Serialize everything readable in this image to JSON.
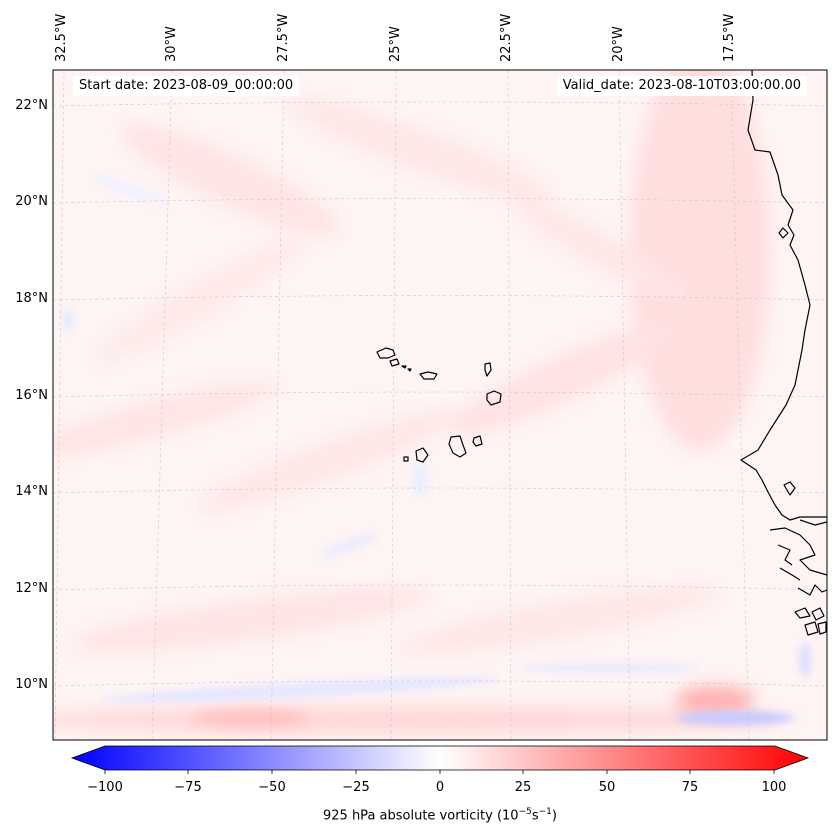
{
  "map": {
    "start_date_label": "Start date: 2023-08-09_00:00:00",
    "valid_date_label": "Valid_date: 2023-08-10T03:00:00.00",
    "longitude_labels": [
      "32.5°W",
      "30°W",
      "27.5°W",
      "25°W",
      "22.5°W",
      "20°W",
      "17.5°W"
    ],
    "latitude_labels": [
      "22°N",
      "20°N",
      "18°N",
      "16°N",
      "14°N",
      "12°N",
      "10°N"
    ],
    "field_colors": {
      "negative": "#0000ff",
      "neutral": "#ffffff",
      "positive": "#ff0000",
      "coastline": "#000000"
    }
  },
  "colorbar": {
    "min": -100,
    "max": 100,
    "ticks": [
      "−100",
      "−75",
      "−50",
      "−25",
      "0",
      "25",
      "50",
      "75",
      "100"
    ],
    "label_prefix": "925 hPa absolute vorticity (10",
    "label_exp1": "−5",
    "label_mid": "s",
    "label_exp2": "−1",
    "label_suffix": ")"
  }
}
